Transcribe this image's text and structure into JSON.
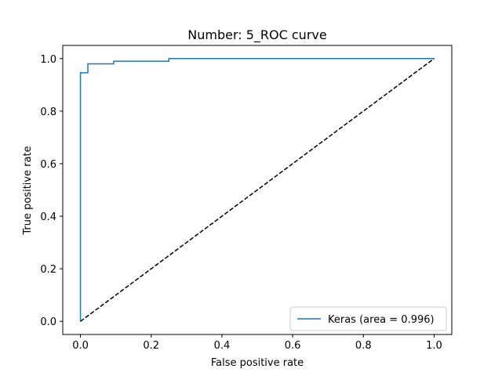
{
  "chart_data": {
    "type": "line",
    "title": "Number:  5_ROC curve",
    "xlabel": "False positive rate",
    "ylabel": "True positive rate",
    "xlim": [
      -0.05,
      1.05
    ],
    "ylim": [
      -0.05,
      1.05
    ],
    "xticks": [
      0.0,
      0.2,
      0.4,
      0.6,
      0.8,
      1.0
    ],
    "yticks": [
      0.0,
      0.2,
      0.4,
      0.6,
      0.8,
      1.0
    ],
    "tick_labels": [
      "0.0",
      "0.2",
      "0.4",
      "0.6",
      "0.8",
      "1.0"
    ],
    "grid": false,
    "legend_position": "lower-right",
    "series": [
      {
        "name": "Keras (area = 0.996)",
        "color": "#1f77b4",
        "style": "solid",
        "x": [
          0.0,
          0.0,
          0.0,
          0.021,
          0.021,
          0.021,
          0.094,
          0.094,
          0.25,
          0.25,
          1.0
        ],
        "y": [
          0.0,
          0.0,
          0.946,
          0.946,
          0.98,
          0.98,
          0.98,
          0.99,
          0.99,
          1.0,
          1.0
        ]
      },
      {
        "color": "#000000",
        "style": "dashed",
        "x": [
          0.0,
          1.0
        ],
        "y": [
          0.0,
          1.0
        ]
      }
    ]
  }
}
